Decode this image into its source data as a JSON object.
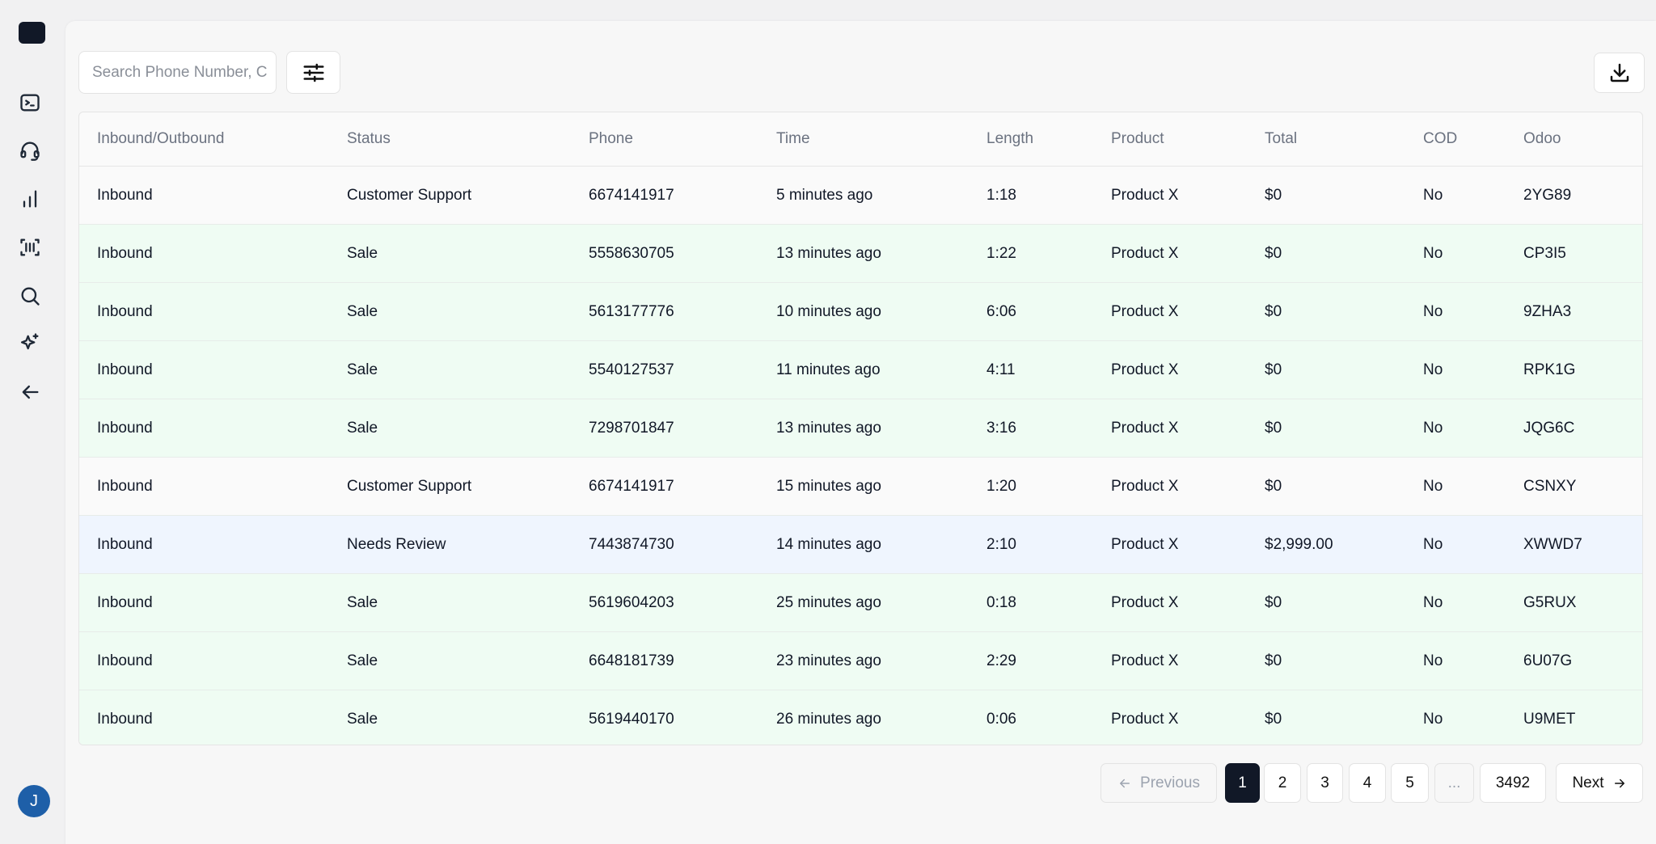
{
  "header": {
    "search_placeholder": "Search Phone Number, C"
  },
  "table": {
    "columns": [
      "Inbound/Outbound",
      "Status",
      "Phone",
      "Time",
      "Length",
      "Product",
      "Total",
      "COD",
      "Odoo"
    ],
    "rows": [
      [
        "Inbound",
        "Customer Support",
        "6674141917",
        "5 minutes ago",
        "1:18",
        "Product X",
        "$0",
        "No",
        "2YG89"
      ],
      [
        "Inbound",
        "Sale",
        "5558630705",
        "13 minutes ago",
        "1:22",
        "Product X",
        "$0",
        "No",
        "CP3I5"
      ],
      [
        "Inbound",
        "Sale",
        "5613177776",
        "10 minutes ago",
        "6:06",
        "Product X",
        "$0",
        "No",
        "9ZHA3"
      ],
      [
        "Inbound",
        "Sale",
        "5540127537",
        "11 minutes ago",
        "4:11",
        "Product X",
        "$0",
        "No",
        "RPK1G"
      ],
      [
        "Inbound",
        "Sale",
        "7298701847",
        "13 minutes ago",
        "3:16",
        "Product X",
        "$0",
        "No",
        "JQG6C"
      ],
      [
        "Inbound",
        "Customer Support",
        "6674141917",
        "15 minutes ago",
        "1:20",
        "Product X",
        "$0",
        "No",
        "CSNXY"
      ],
      [
        "Inbound",
        "Needs Review",
        "7443874730",
        "14 minutes ago",
        "2:10",
        "Product X",
        "$2,999.00",
        "No",
        "XWWD7"
      ],
      [
        "Inbound",
        "Sale",
        "5619604203",
        "25 minutes ago",
        "0:18",
        "Product X",
        "$0",
        "No",
        "G5RUX"
      ],
      [
        "Inbound",
        "Sale",
        "6648181739",
        "23 minutes ago",
        "2:29",
        "Product X",
        "$0",
        "No",
        "6U07G"
      ],
      [
        "Inbound",
        "Sale",
        "5619440170",
        "26 minutes ago",
        "0:06",
        "Product X",
        "$0",
        "No",
        "U9MET"
      ]
    ]
  },
  "pagination": {
    "previous": "Previous",
    "pages": [
      "1",
      "2",
      "3",
      "4",
      "5",
      "...",
      "3492"
    ],
    "next": "Next"
  },
  "user": {
    "avatar": "J"
  }
}
